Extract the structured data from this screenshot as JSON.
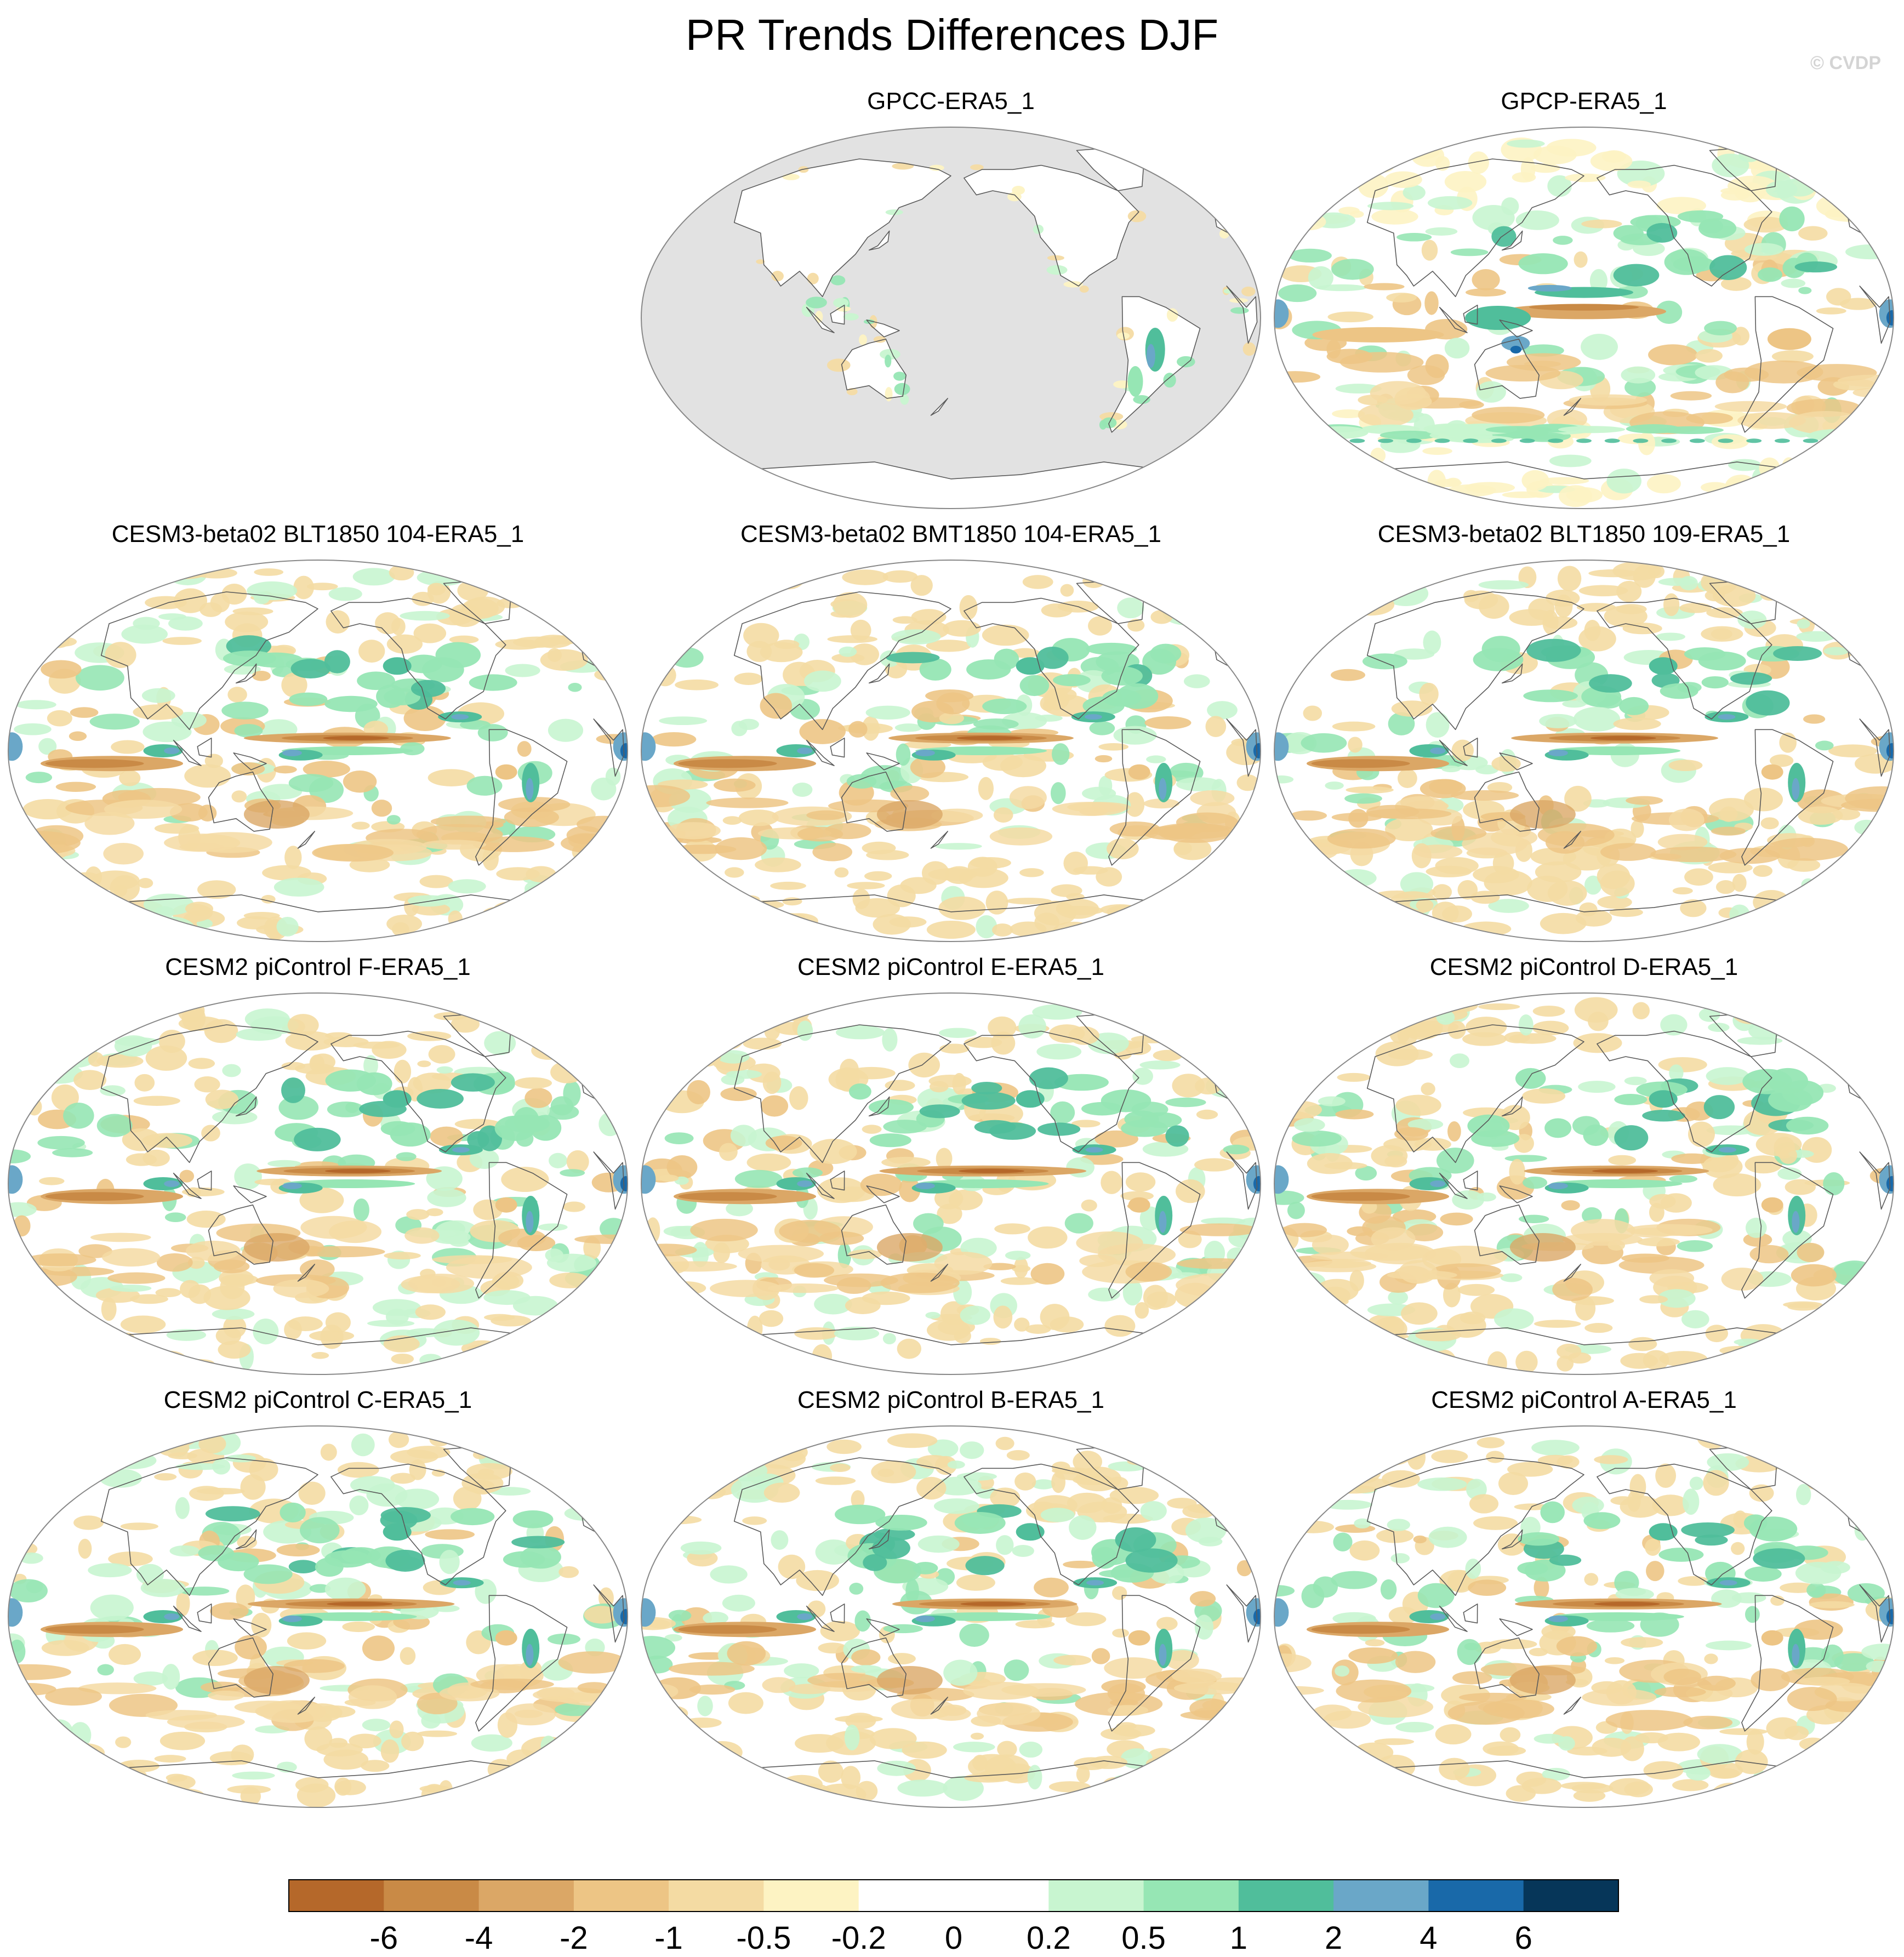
{
  "figure": {
    "title": "PR Trends Differences DJF",
    "credit": "© CVDP"
  },
  "palette": {
    "ocean_mask": "#e2e2e2",
    "coast": "#5a5a5a",
    "border": "#888888"
  },
  "panels": [
    {
      "id": "p1",
      "label": "GPCC-ERA5_1",
      "style": "land"
    },
    {
      "id": "p2",
      "label": "GPCP-ERA5_1",
      "style": "obs"
    },
    {
      "id": "p3",
      "label": "CESM3-beta02 BLT1850 104-ERA5_1",
      "style": "model"
    },
    {
      "id": "p4",
      "label": "CESM3-beta02 BMT1850 104-ERA5_1",
      "style": "model"
    },
    {
      "id": "p5",
      "label": "CESM3-beta02 BLT1850 109-ERA5_1",
      "style": "model"
    },
    {
      "id": "p6",
      "label": "CESM2 piControl F-ERA5_1",
      "style": "model"
    },
    {
      "id": "p7",
      "label": "CESM2 piControl E-ERA5_1",
      "style": "model"
    },
    {
      "id": "p8",
      "label": "CESM2 piControl D-ERA5_1",
      "style": "model"
    },
    {
      "id": "p9",
      "label": "CESM2 piControl C-ERA5_1",
      "style": "model"
    },
    {
      "id": "p10",
      "label": "CESM2 piControl B-ERA5_1",
      "style": "model"
    },
    {
      "id": "p11",
      "label": "CESM2 piControl A-ERA5_1",
      "style": "model"
    }
  ],
  "colorbar": {
    "colors": [
      "#b5682a",
      "#c98a46",
      "#dba766",
      "#edc585",
      "#f4dba3",
      "#fdf3c3",
      "#ffffff",
      "#ffffff",
      "#c8f5d0",
      "#96e6b4",
      "#50be9b",
      "#6aa7c8",
      "#1969a9",
      "#063659"
    ],
    "tick_labels": [
      "-6",
      "-4",
      "-2",
      "-1",
      "-0.5",
      "-0.2",
      "0",
      "0.2",
      "0.5",
      "1",
      "2",
      "4",
      "6"
    ]
  }
}
